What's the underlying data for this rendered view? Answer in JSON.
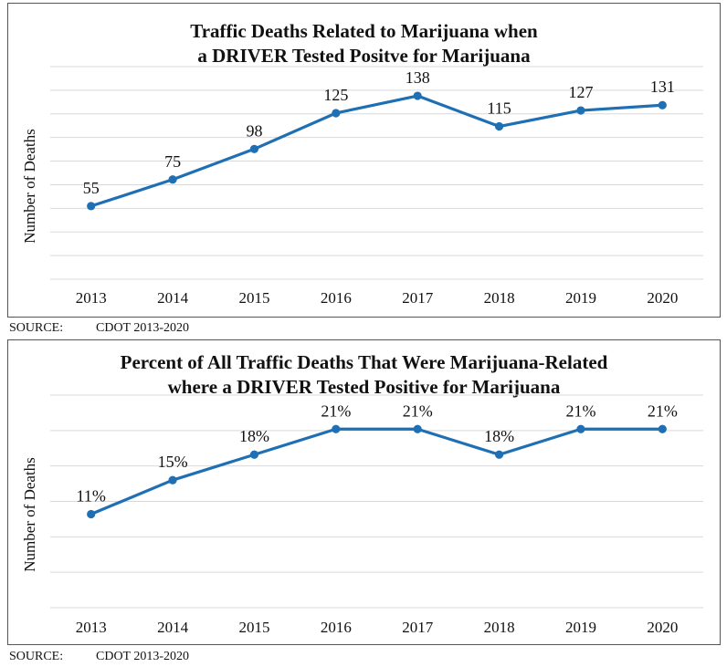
{
  "charts": [
    {
      "title_line1": "Traffic Deaths Related to Marijuana when",
      "title_line2": "a DRIVER Tested Positve for Marijuana",
      "source_label": "SOURCE:",
      "source_text": "CDOT 2013-2020"
    },
    {
      "title_line1": "Percent of All Traffic Deaths That Were Marijuana-Related",
      "title_line2": "where a DRIVER Tested Positive for Marijuana",
      "source_label": "SOURCE:",
      "source_text": "CDOT 2013-2020"
    }
  ],
  "colors": {
    "line": "#1f6fb4",
    "grid": "#d9d9d9",
    "text": "#111111"
  },
  "chart_data": [
    {
      "type": "line",
      "title": "Traffic Deaths Related to Marijuana when a DRIVER Tested Positve for Marijuana",
      "xlabel": "",
      "ylabel": "Number of Deaths",
      "categories": [
        "2013",
        "2014",
        "2015",
        "2016",
        "2017",
        "2018",
        "2019",
        "2020"
      ],
      "series": [
        {
          "values": [
            55,
            75,
            98,
            125,
            138,
            115,
            127,
            131
          ],
          "labels": [
            "55",
            "75",
            "98",
            "125",
            "138",
            "115",
            "127",
            "131"
          ]
        }
      ],
      "ylim": [
        0,
        160
      ],
      "grid": true,
      "legend": "none"
    },
    {
      "type": "line",
      "title": "Percent of All Traffic Deaths That Were Marijuana-Related where a DRIVER Tested Positive for Marijuana",
      "xlabel": "",
      "ylabel": "Number of Deaths",
      "categories": [
        "2013",
        "2014",
        "2015",
        "2016",
        "2017",
        "2018",
        "2019",
        "2020"
      ],
      "series": [
        {
          "values": [
            11,
            15,
            18,
            21,
            21,
            18,
            21,
            21
          ],
          "labels": [
            "11%",
            "15%",
            "18%",
            "21%",
            "21%",
            "18%",
            "21%",
            "21%"
          ]
        }
      ],
      "ylim": [
        0,
        25
      ],
      "grid": true,
      "legend": "none"
    }
  ]
}
